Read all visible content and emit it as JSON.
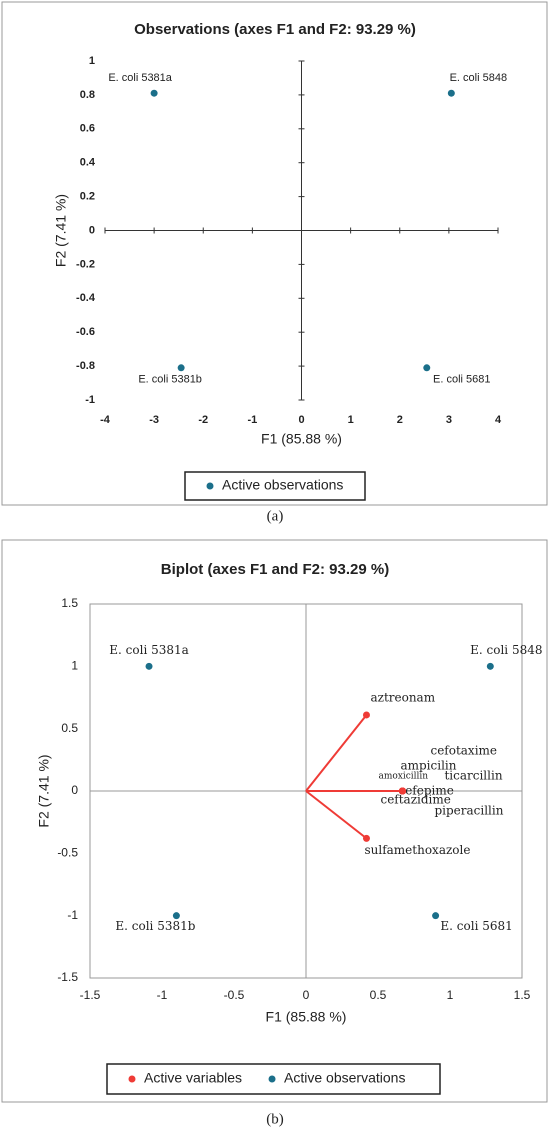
{
  "chart_data": [
    {
      "type": "scatter",
      "title": "Observations (axes F1 and F2: 93.29 %)",
      "x_label": "F1 (85.88 %)",
      "y_label": "F2 (7.41 %)",
      "caption": "(a)",
      "xlim": [
        -4,
        4
      ],
      "xticks": [
        -4,
        -3,
        -2,
        -1,
        0,
        1,
        2,
        3,
        4
      ],
      "ylim": [
        -1,
        1
      ],
      "yticks": [
        -1,
        -0.8,
        -0.6,
        -0.4,
        -0.2,
        0,
        0.2,
        0.4,
        0.6,
        0.8,
        1
      ],
      "grid": false,
      "series": [
        {
          "name": "Active observations",
          "color": "#1b6f8a",
          "point_labels": [
            "E. coli 5381a",
            "E. coli 5848",
            "E. coli 5381b",
            "E. coli 5681"
          ],
          "x": [
            -3.0,
            3.05,
            -2.45,
            2.55
          ],
          "values": [
            0.81,
            0.81,
            -0.81,
            -0.81
          ]
        }
      ]
    },
    {
      "type": "biplot",
      "title": "Biplot (axes F1 and F2: 93.29 %)",
      "x_label": "F1 (85.88 %)",
      "y_label": "F2 (7.41 %)",
      "caption": "(b)",
      "xlim": [
        -1.5,
        1.5
      ],
      "xticks": [
        -1.5,
        -1,
        -0.5,
        0,
        0.5,
        1,
        1.5
      ],
      "ylim": [
        -1.5,
        1.5
      ],
      "yticks": [
        -1.5,
        -1,
        -0.5,
        0,
        0.5,
        1,
        1.5
      ],
      "grid": false,
      "series": [
        {
          "name": "Active variables",
          "color": "#ef3b36",
          "arrows": true,
          "point_labels": [
            "aztreonam",
            "cefotaxime",
            "ampicilin",
            "amoxicillin",
            "ticarcillin",
            "cefepime",
            "ceftazidime",
            "piperacillin",
            "sulfamethoxazole"
          ],
          "x": [
            0.42,
            0.67,
            0.67,
            0.67,
            0.67,
            0.67,
            0.67,
            0.67,
            0.42
          ],
          "values": [
            0.61,
            0,
            0,
            0,
            0,
            0,
            0,
            0,
            -0.38
          ]
        },
        {
          "name": "Active observations",
          "color": "#1b6f8a",
          "point_labels": [
            "E. coli 5381a",
            "E. coli 5848",
            "E. coli 5381b",
            "E. coli 5681"
          ],
          "x": [
            -1.09,
            1.28,
            -0.9,
            0.9
          ],
          "values": [
            1,
            1,
            -1,
            -1
          ]
        }
      ]
    }
  ]
}
